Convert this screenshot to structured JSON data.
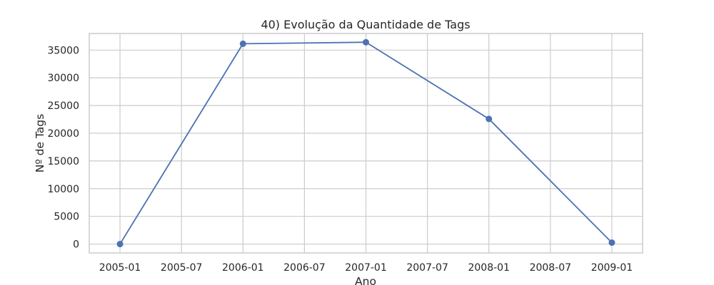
{
  "chart_data": {
    "type": "line",
    "title": "40) Evolução da Quantidade de Tags",
    "xlabel": "Ano",
    "ylabel": "Nº de Tags",
    "x_ticks": [
      "2005-01",
      "2005-07",
      "2006-01",
      "2006-07",
      "2007-01",
      "2007-07",
      "2008-01",
      "2008-07",
      "2009-01"
    ],
    "y_ticks": [
      "0",
      "5000",
      "10000",
      "15000",
      "20000",
      "25000",
      "30000",
      "35000"
    ],
    "ylim": [
      -1600,
      38000
    ],
    "xlim": [
      "2004-10",
      "2009-04"
    ],
    "grid": true,
    "series": [
      {
        "color": "#4c72b0",
        "x": [
          "2005-01",
          "2006-01",
          "2007-01",
          "2008-01",
          "2009-01"
        ],
        "values": [
          0,
          36150,
          36420,
          22580,
          260
        ]
      }
    ]
  }
}
